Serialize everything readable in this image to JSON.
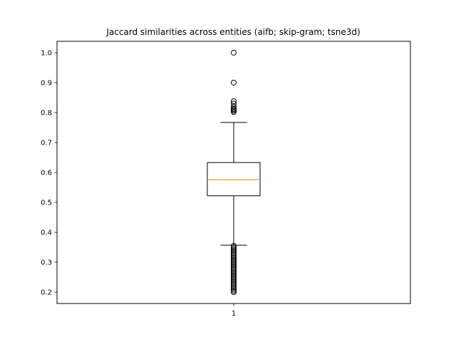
{
  "chart_data": {
    "type": "box",
    "title": "Jaccard similarities across entities (aifb; skip-gram; tsne3d)",
    "xlabel": "",
    "ylabel": "",
    "categories": [
      "1"
    ],
    "ylim": [
      0.162,
      1.038
    ],
    "yticks": [
      0.2,
      0.3,
      0.4,
      0.5,
      0.6,
      0.7,
      0.8,
      0.9,
      1.0
    ],
    "ytick_labels": [
      "0.2",
      "0.3",
      "0.4",
      "0.5",
      "0.6",
      "0.7",
      "0.8",
      "0.9",
      "1.0"
    ],
    "grid": false,
    "box": {
      "q1": 0.522,
      "median": 0.576,
      "q3": 0.633,
      "whisker_low": 0.357,
      "whisker_high": 0.767
    },
    "outliers_high": [
      0.802,
      0.806,
      0.81,
      0.813,
      0.82,
      0.83,
      0.838,
      0.9,
      1.0
    ],
    "outliers_low": [
      0.355,
      0.35,
      0.345,
      0.34,
      0.335,
      0.33,
      0.325,
      0.32,
      0.315,
      0.31,
      0.305,
      0.3,
      0.295,
      0.29,
      0.285,
      0.28,
      0.275,
      0.27,
      0.265,
      0.26,
      0.255,
      0.25,
      0.245,
      0.24,
      0.235,
      0.23,
      0.225,
      0.22,
      0.215,
      0.21,
      0.205,
      0.2
    ],
    "colors": {
      "box": "#000000",
      "median": "#ff7f0e",
      "outlier": "#000000"
    }
  }
}
